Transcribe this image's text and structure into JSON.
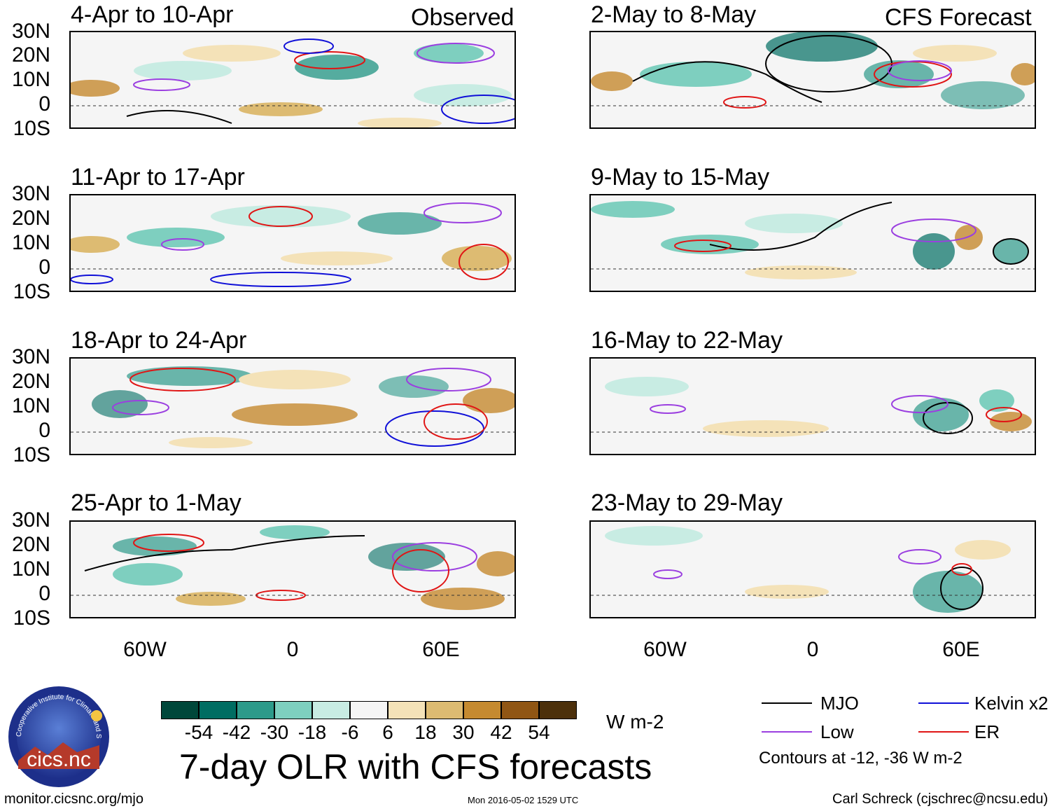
{
  "figure_title": "7-day OLR with CFS forecasts",
  "column_labels": {
    "observed": "Observed",
    "forecast": "CFS Forecast"
  },
  "panels": [
    {
      "title": "4-Apr to 10-Apr",
      "kind": "observed"
    },
    {
      "title": "11-Apr to 17-Apr",
      "kind": "observed"
    },
    {
      "title": "18-Apr to 24-Apr",
      "kind": "observed"
    },
    {
      "title": "25-Apr to 1-May",
      "kind": "observed"
    },
    {
      "title": "2-May to 8-May",
      "kind": "forecast"
    },
    {
      "title": "9-May to 15-May",
      "kind": "forecast"
    },
    {
      "title": "16-May to 22-May",
      "kind": "forecast"
    },
    {
      "title": "23-May to 29-May",
      "kind": "forecast"
    }
  ],
  "lat_labels": [
    "30N",
    "20N",
    "10N",
    "0",
    "10S"
  ],
  "lon_labels": [
    "60W",
    "0",
    "60E"
  ],
  "colorbar": {
    "colors": [
      "#00473a",
      "#006d62",
      "#2d9a8a",
      "#7ecfbf",
      "#c8ece3",
      "#f5f5f5",
      "#f4e2b8",
      "#ddbb72",
      "#c58a30",
      "#905614",
      "#4c300b"
    ],
    "tick_labels": [
      "-54",
      "-42",
      "-30",
      "-18",
      "-6",
      "6",
      "18",
      "30",
      "42",
      "54"
    ],
    "units": "W m-2"
  },
  "legend": {
    "items": [
      {
        "label": "MJO",
        "color": "#000000"
      },
      {
        "label": "Kelvin x2",
        "color": "#1010d8"
      },
      {
        "label": "Low",
        "color": "#9b3fe0"
      },
      {
        "label": "ER",
        "color": "#e01515"
      }
    ],
    "note": "Contours at -12, -36 W m-2"
  },
  "logo_text": "cics.nc",
  "logo_ring_text": "Cooperative Institute for Climate and Satellites",
  "footer": {
    "left": "monitor.cicsnc.org/mjo",
    "center": "Mon 2016-05-02 1529 UTC",
    "right": "Carl Schreck (cjschrec@ncsu.edu)"
  }
}
